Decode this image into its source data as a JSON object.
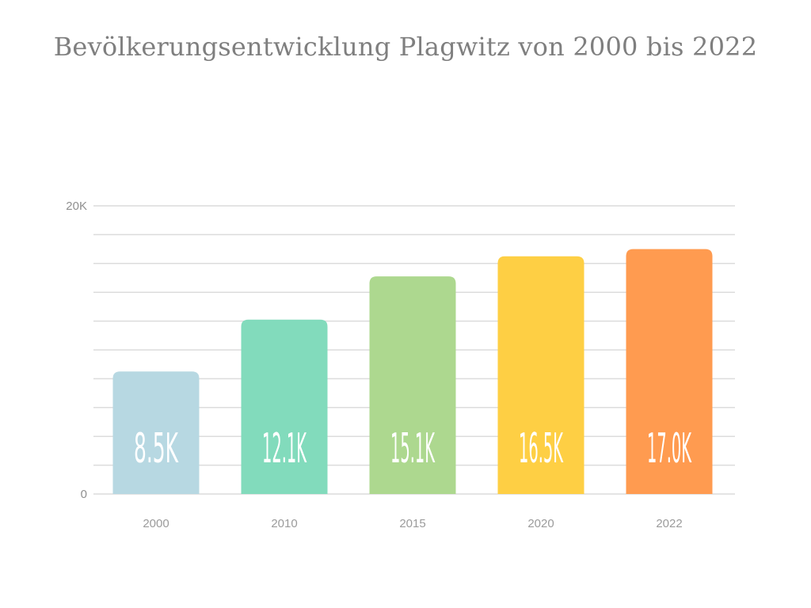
{
  "chart_data": {
    "type": "bar",
    "title": "Bevölkerungsentwicklung Plagwitz von 2000 bis 2022",
    "xlabel": "",
    "ylabel": "",
    "categories": [
      "2000",
      "2010",
      "2015",
      "2020",
      "2022"
    ],
    "values": [
      8500,
      12100,
      15100,
      16500,
      17000
    ],
    "value_labels": [
      "8.5K",
      "12.1K",
      "15.1K",
      "16.5K",
      "17.0K"
    ],
    "ylim": [
      0,
      20000
    ],
    "y_ticks": [
      {
        "value": 0,
        "label": "0"
      },
      {
        "value": 20000,
        "label": "20K"
      }
    ],
    "gridline_step": 2000,
    "grid": true,
    "bar_colors": [
      "#b7d8e2",
      "#82dbbc",
      "#add88f",
      "#fecf44",
      "#ff9b50"
    ]
  }
}
